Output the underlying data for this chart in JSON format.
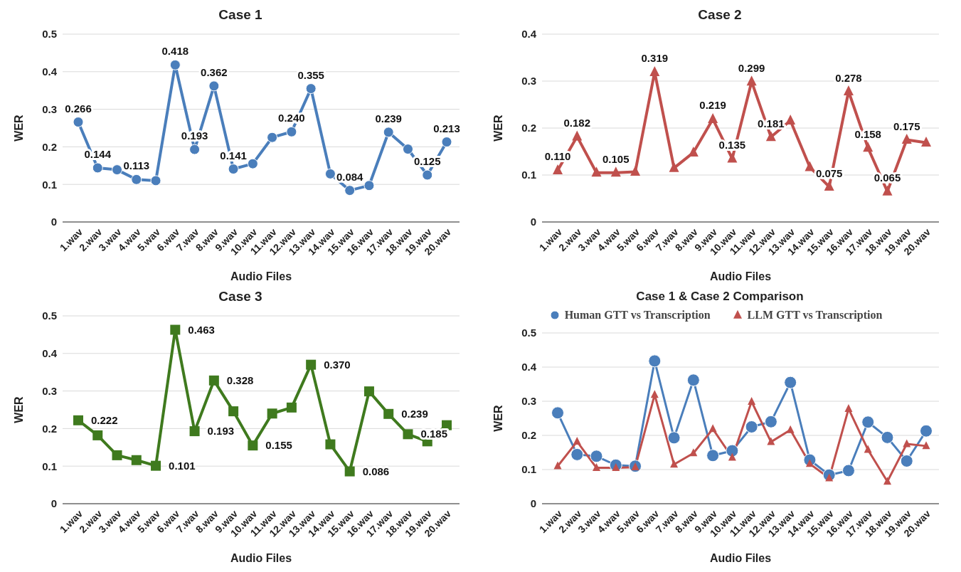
{
  "chart_data": [
    {
      "type": "line",
      "title": "Case 1",
      "xlabel": "Audio Files",
      "ylabel": "WER",
      "categories": [
        "1.wav",
        "2.wav",
        "3.wav",
        "4.wav",
        "5.wav",
        "6.wav",
        "7.wav",
        "8.wav",
        "9.wav",
        "10.wav",
        "11.wav",
        "12.wav",
        "13.wav",
        "14.wav",
        "15.wav",
        "16.wav",
        "17.wav",
        "18.wav",
        "19.wav",
        "20.wav"
      ],
      "ylim": [
        0,
        0.5
      ],
      "yticks": [
        0,
        0.1,
        0.2,
        0.3,
        0.4,
        0.5
      ],
      "grid": "y",
      "marker": "circle",
      "line_style": "solid",
      "legend": false,
      "series": [
        {
          "color": "#4a7ebb",
          "values": [
            0.266,
            0.144,
            0.139,
            0.113,
            0.11,
            0.418,
            0.193,
            0.362,
            0.141,
            0.155,
            0.225,
            0.24,
            0.355,
            0.128,
            0.084,
            0.097,
            0.239,
            0.194,
            0.125,
            0.213
          ],
          "value_labels": [
            "0.266",
            "0.144",
            null,
            "0.113",
            null,
            "0.418",
            "0.193",
            "0.362",
            "0.141",
            null,
            null,
            "0.240",
            "0.355",
            null,
            "0.084",
            null,
            "0.239",
            null,
            "0.125",
            "0.213"
          ]
        }
      ]
    },
    {
      "type": "line",
      "title": "Case 2",
      "xlabel": "Audio Files",
      "ylabel": "WER",
      "categories": [
        "1.wav",
        "2.wav",
        "3.wav",
        "4.wav",
        "5.wav",
        "6.wav",
        "7.wav",
        "8.wav",
        "9.wav",
        "10.wav",
        "11.wav",
        "12.wav",
        "13.wav",
        "14.wav",
        "15.wav",
        "16.wav",
        "17.wav",
        "18.wav",
        "19.wav",
        "20.wav"
      ],
      "ylim": [
        0,
        0.4
      ],
      "yticks": [
        0,
        0.1,
        0.2,
        0.3,
        0.4
      ],
      "grid": "y",
      "marker": "triangle",
      "line_style": "solid",
      "legend": false,
      "series": [
        {
          "color": "#c0504d",
          "values": [
            0.11,
            0.182,
            0.105,
            0.105,
            0.107,
            0.319,
            0.115,
            0.148,
            0.219,
            0.135,
            0.299,
            0.181,
            0.216,
            0.117,
            0.075,
            0.278,
            0.158,
            0.065,
            0.175,
            0.169
          ],
          "value_labels": [
            "0.110",
            "0.182",
            null,
            "0.105",
            null,
            "0.319",
            null,
            null,
            "0.219",
            "0.135",
            "0.299",
            "0.181",
            null,
            null,
            "0.075",
            "0.278",
            "0.158",
            "0.065",
            "0.175",
            null
          ]
        }
      ]
    },
    {
      "type": "line",
      "title": "Case 3",
      "xlabel": "Audio Files",
      "ylabel": "WER",
      "categories": [
        "1.wav",
        "2.wav",
        "3.wav",
        "4.wav",
        "5.wav",
        "6.wav",
        "7.wav",
        "8.wav",
        "9.wav",
        "10.wav",
        "11.wav",
        "12.wav",
        "13.wav",
        "14.wav",
        "15.wav",
        "16.wav",
        "17.wav",
        "18.wav",
        "19.wav",
        "20.wav"
      ],
      "ylim": [
        0,
        0.5
      ],
      "yticks": [
        0,
        0.1,
        0.2,
        0.3,
        0.4,
        0.5
      ],
      "grid": "y",
      "marker": "square",
      "line_style": "solid",
      "legend": false,
      "series": [
        {
          "color": "#3f7a1e",
          "values": [
            0.222,
            0.182,
            0.129,
            0.116,
            0.101,
            0.463,
            0.193,
            0.328,
            0.246,
            0.155,
            0.24,
            0.256,
            0.37,
            0.158,
            0.086,
            0.299,
            0.239,
            0.185,
            0.166,
            0.209
          ],
          "value_labels": [
            "0.222",
            null,
            null,
            null,
            "0.101",
            "0.463",
            "0.193",
            "0.328",
            null,
            "0.155",
            null,
            null,
            "0.370",
            null,
            "0.086",
            null,
            "0.239",
            "0.185",
            null,
            null
          ]
        }
      ]
    },
    {
      "type": "line",
      "title": "Case 1 & Case 2 Comparison",
      "xlabel": "Audio Files",
      "ylabel": "WER",
      "categories": [
        "1.wav",
        "2.wav",
        "3.wav",
        "4.wav",
        "5.wav",
        "6.wav",
        "7.wav",
        "8.wav",
        "9.wav",
        "10.wav",
        "11.wav",
        "12.wav",
        "13.wav",
        "14.wav",
        "15.wav",
        "16.wav",
        "17.wav",
        "18.wav",
        "19.wav",
        "20.wav"
      ],
      "ylim": [
        0,
        0.5
      ],
      "yticks": [
        0,
        0.1,
        0.2,
        0.3,
        0.4,
        0.5
      ],
      "grid": "y",
      "line_style": "solid",
      "legend": "top",
      "series": [
        {
          "name": "Human GTT vs Transcription",
          "color": "#4a7ebb",
          "marker": "circle",
          "values": [
            0.266,
            0.144,
            0.139,
            0.113,
            0.11,
            0.418,
            0.193,
            0.362,
            0.141,
            0.155,
            0.225,
            0.24,
            0.355,
            0.128,
            0.084,
            0.097,
            0.239,
            0.194,
            0.125,
            0.213
          ]
        },
        {
          "name": "LLM GTT vs Transcription",
          "color": "#c0504d",
          "marker": "triangle",
          "values": [
            0.11,
            0.182,
            0.105,
            0.105,
            0.107,
            0.319,
            0.115,
            0.148,
            0.219,
            0.135,
            0.299,
            0.181,
            0.216,
            0.117,
            0.075,
            0.278,
            0.158,
            0.065,
            0.175,
            0.169
          ]
        }
      ]
    }
  ]
}
